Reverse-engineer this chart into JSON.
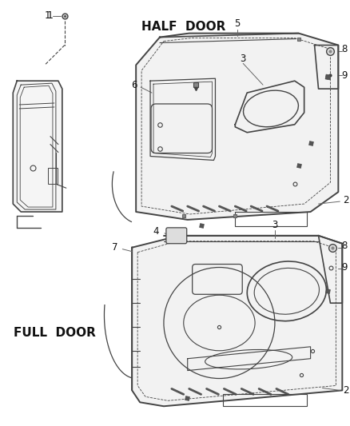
{
  "background_color": "#ffffff",
  "line_color": "#444444",
  "label_color": "#111111",
  "half_door_label": "HALF  DOOR",
  "full_door_label": "FULL  DOOR",
  "fig_w": 4.38,
  "fig_h": 5.33
}
